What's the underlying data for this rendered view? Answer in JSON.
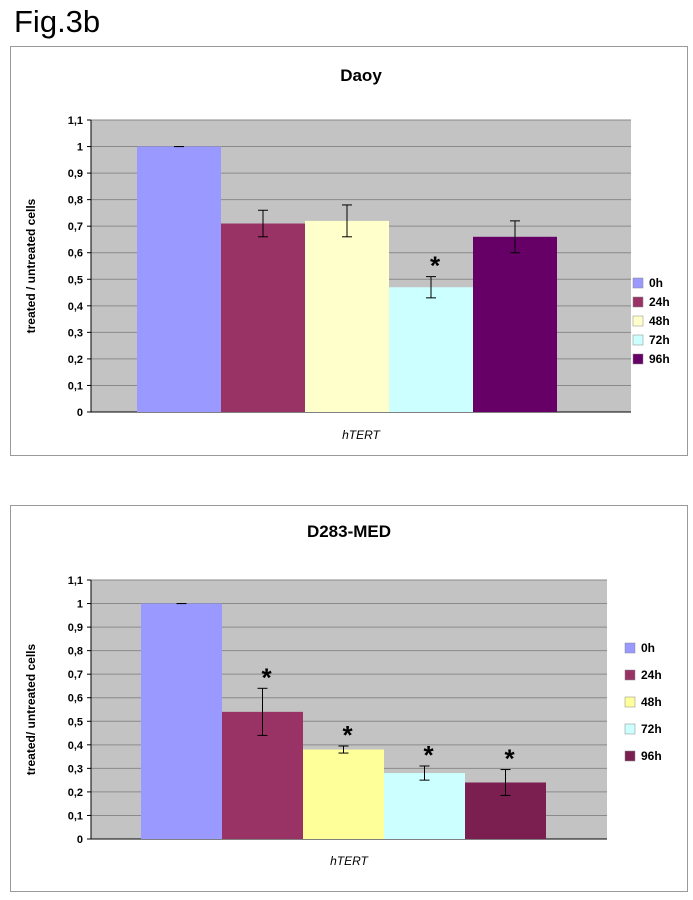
{
  "figure_label": "Fig.3b",
  "colors": {
    "plot_bg": "#c3c3c3",
    "grid": "#8a8a8a",
    "axis": "#000000"
  },
  "chart_data": [
    {
      "type": "bar",
      "title": "Daoy",
      "xlabel": "hTERT",
      "ylabel": "treated / untreated cells",
      "ylim": [
        0,
        1.1
      ],
      "yticks": [
        "0",
        "0,1",
        "0,2",
        "0,3",
        "0,4",
        "0,5",
        "0,6",
        "0,7",
        "0,8",
        "0,9",
        "1",
        "1,1"
      ],
      "grid": true,
      "legend": "right",
      "categories": [
        "hTERT"
      ],
      "series": [
        {
          "name": "0h",
          "values": [
            1.0
          ],
          "error": [
            0.0
          ],
          "color": "#9999ff",
          "significant": false
        },
        {
          "name": "24h",
          "values": [
            0.71
          ],
          "error": [
            0.05
          ],
          "color": "#993366",
          "significant": false
        },
        {
          "name": "48h",
          "values": [
            0.72
          ],
          "error": [
            0.06
          ],
          "color": "#ffffcc",
          "significant": false
        },
        {
          "name": "72h",
          "values": [
            0.47
          ],
          "error": [
            0.04
          ],
          "color": "#ccffff",
          "significant": true
        },
        {
          "name": "96h",
          "values": [
            0.66
          ],
          "error": [
            0.06
          ],
          "color": "#660066",
          "significant": false
        }
      ],
      "annotation": "*"
    },
    {
      "type": "bar",
      "title": "D283-MED",
      "xlabel": "hTERT",
      "ylabel": "treated/ untreated cells",
      "ylim": [
        0,
        1.1
      ],
      "yticks": [
        "0",
        "0,1",
        "0,2",
        "0,3",
        "0,4",
        "0,5",
        "0,6",
        "0,7",
        "0,8",
        "0,9",
        "1",
        "1,1"
      ],
      "grid": true,
      "legend": "right",
      "categories": [
        "hTERT"
      ],
      "series": [
        {
          "name": "0h",
          "values": [
            1.0
          ],
          "error": [
            0.0
          ],
          "color": "#9999ff",
          "significant": false
        },
        {
          "name": "24h",
          "values": [
            0.54
          ],
          "error": [
            0.1
          ],
          "color": "#993366",
          "significant": true
        },
        {
          "name": "48h",
          "values": [
            0.38
          ],
          "error": [
            0.015
          ],
          "color": "#ffff99",
          "significant": true
        },
        {
          "name": "72h",
          "values": [
            0.28
          ],
          "error": [
            0.03
          ],
          "color": "#ccffff",
          "significant": true
        },
        {
          "name": "96h",
          "values": [
            0.24
          ],
          "error": [
            0.055
          ],
          "color": "#7a1f4f",
          "significant": true
        }
      ],
      "annotation": "*"
    }
  ]
}
